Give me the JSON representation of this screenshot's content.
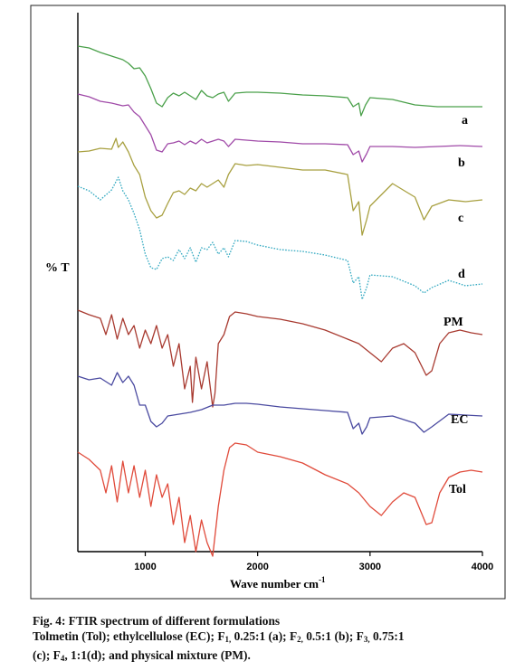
{
  "chart_data": {
    "type": "line",
    "title": "",
    "xlabel": "Wave number cm",
    "xlabel_superscript": "-1",
    "ylabel": "% T",
    "xlim": [
      400,
      4000
    ],
    "x_ticks": [
      1000,
      2000,
      3000,
      4000
    ],
    "y_ticks": [],
    "grid": false,
    "legend": "none (series labelled directly at right)",
    "series": [
      {
        "name": "a",
        "color": "#4aa04a",
        "style": "solid",
        "points": [
          [
            400,
            -3
          ],
          [
            500,
            -5
          ],
          [
            600,
            -10
          ],
          [
            700,
            -14
          ],
          [
            800,
            -18
          ],
          [
            850,
            -22
          ],
          [
            900,
            -28
          ],
          [
            950,
            -27
          ],
          [
            1000,
            -36
          ],
          [
            1050,
            -50
          ],
          [
            1100,
            -66
          ],
          [
            1150,
            -70
          ],
          [
            1200,
            -60
          ],
          [
            1250,
            -55
          ],
          [
            1300,
            -58
          ],
          [
            1350,
            -54
          ],
          [
            1400,
            -58
          ],
          [
            1450,
            -62
          ],
          [
            1500,
            -52
          ],
          [
            1550,
            -58
          ],
          [
            1600,
            -60
          ],
          [
            1650,
            -56
          ],
          [
            1700,
            -54
          ],
          [
            1740,
            -64
          ],
          [
            1800,
            -55
          ],
          [
            1900,
            -54
          ],
          [
            2000,
            -54
          ],
          [
            2200,
            -55
          ],
          [
            2400,
            -57
          ],
          [
            2600,
            -58
          ],
          [
            2800,
            -60
          ],
          [
            2850,
            -70
          ],
          [
            2900,
            -66
          ],
          [
            2920,
            -80
          ],
          [
            2960,
            -68
          ],
          [
            3000,
            -60
          ],
          [
            3200,
            -62
          ],
          [
            3400,
            -68
          ],
          [
            3600,
            -70
          ],
          [
            3800,
            -70
          ],
          [
            4000,
            -70
          ]
        ]
      },
      {
        "name": "b",
        "color": "#a04aa8",
        "style": "solid",
        "points": [
          [
            400,
            0
          ],
          [
            500,
            -3
          ],
          [
            600,
            -8
          ],
          [
            700,
            -10
          ],
          [
            800,
            -13
          ],
          [
            850,
            -12
          ],
          [
            900,
            -20
          ],
          [
            950,
            -25
          ],
          [
            1000,
            -35
          ],
          [
            1050,
            -45
          ],
          [
            1100,
            -62
          ],
          [
            1150,
            -64
          ],
          [
            1200,
            -55
          ],
          [
            1250,
            -54
          ],
          [
            1300,
            -52
          ],
          [
            1350,
            -56
          ],
          [
            1400,
            -52
          ],
          [
            1450,
            -55
          ],
          [
            1500,
            -50
          ],
          [
            1550,
            -54
          ],
          [
            1600,
            -52
          ],
          [
            1650,
            -50
          ],
          [
            1700,
            -52
          ],
          [
            1740,
            -58
          ],
          [
            1800,
            -50
          ],
          [
            1900,
            -51
          ],
          [
            2000,
            -52
          ],
          [
            2200,
            -53
          ],
          [
            2400,
            -55
          ],
          [
            2600,
            -55
          ],
          [
            2800,
            -56
          ],
          [
            2850,
            -67
          ],
          [
            2900,
            -63
          ],
          [
            2930,
            -75
          ],
          [
            2970,
            -66
          ],
          [
            3000,
            -58
          ],
          [
            3200,
            -58
          ],
          [
            3400,
            -59
          ],
          [
            3600,
            -58
          ],
          [
            3800,
            -57
          ],
          [
            4000,
            -58
          ]
        ]
      },
      {
        "name": "c",
        "color": "#a8a040",
        "style": "solid",
        "points": [
          [
            400,
            -5
          ],
          [
            500,
            -4
          ],
          [
            600,
            -1
          ],
          [
            700,
            -2
          ],
          [
            740,
            10
          ],
          [
            760,
            0
          ],
          [
            800,
            6
          ],
          [
            850,
            -5
          ],
          [
            900,
            -20
          ],
          [
            950,
            -30
          ],
          [
            1000,
            -55
          ],
          [
            1050,
            -70
          ],
          [
            1100,
            -78
          ],
          [
            1150,
            -75
          ],
          [
            1200,
            -62
          ],
          [
            1250,
            -50
          ],
          [
            1300,
            -48
          ],
          [
            1350,
            -52
          ],
          [
            1400,
            -45
          ],
          [
            1450,
            -48
          ],
          [
            1500,
            -40
          ],
          [
            1550,
            -44
          ],
          [
            1600,
            -40
          ],
          [
            1650,
            -36
          ],
          [
            1700,
            -44
          ],
          [
            1740,
            -30
          ],
          [
            1800,
            -18
          ],
          [
            1900,
            -20
          ],
          [
            2000,
            -19
          ],
          [
            2200,
            -22
          ],
          [
            2400,
            -25
          ],
          [
            2600,
            -25
          ],
          [
            2800,
            -30
          ],
          [
            2850,
            -70
          ],
          [
            2900,
            -60
          ],
          [
            2930,
            -97
          ],
          [
            2970,
            -80
          ],
          [
            3000,
            -65
          ],
          [
            3200,
            -40
          ],
          [
            3400,
            -55
          ],
          [
            3480,
            -80
          ],
          [
            3550,
            -65
          ],
          [
            3700,
            -58
          ],
          [
            3850,
            -60
          ],
          [
            4000,
            -58
          ]
        ]
      },
      {
        "name": "d",
        "color": "#30a8c0",
        "style": "dotted",
        "points": [
          [
            400,
            0
          ],
          [
            500,
            -5
          ],
          [
            600,
            -15
          ],
          [
            700,
            -4
          ],
          [
            760,
            10
          ],
          [
            800,
            -5
          ],
          [
            850,
            -15
          ],
          [
            900,
            -30
          ],
          [
            950,
            -48
          ],
          [
            1000,
            -75
          ],
          [
            1050,
            -90
          ],
          [
            1100,
            -92
          ],
          [
            1150,
            -80
          ],
          [
            1200,
            -78
          ],
          [
            1250,
            -82
          ],
          [
            1300,
            -70
          ],
          [
            1350,
            -80
          ],
          [
            1400,
            -68
          ],
          [
            1450,
            -84
          ],
          [
            1500,
            -68
          ],
          [
            1550,
            -70
          ],
          [
            1600,
            -62
          ],
          [
            1650,
            -75
          ],
          [
            1700,
            -68
          ],
          [
            1740,
            -78
          ],
          [
            1800,
            -60
          ],
          [
            1900,
            -61
          ],
          [
            2000,
            -65
          ],
          [
            2200,
            -70
          ],
          [
            2400,
            -72
          ],
          [
            2600,
            -76
          ],
          [
            2800,
            -82
          ],
          [
            2850,
            -107
          ],
          [
            2900,
            -100
          ],
          [
            2930,
            -125
          ],
          [
            2970,
            -112
          ],
          [
            3000,
            -98
          ],
          [
            3200,
            -100
          ],
          [
            3400,
            -110
          ],
          [
            3480,
            -118
          ],
          [
            3550,
            -112
          ],
          [
            3700,
            -104
          ],
          [
            3850,
            -110
          ],
          [
            4000,
            -108
          ]
        ]
      },
      {
        "name": "PM",
        "color": "#a83a30",
        "style": "solid",
        "points": [
          [
            400,
            -3
          ],
          [
            500,
            -8
          ],
          [
            600,
            -12
          ],
          [
            650,
            -30
          ],
          [
            700,
            -8
          ],
          [
            750,
            -35
          ],
          [
            800,
            -12
          ],
          [
            850,
            -30
          ],
          [
            900,
            -20
          ],
          [
            950,
            -45
          ],
          [
            1000,
            -25
          ],
          [
            1050,
            -40
          ],
          [
            1100,
            -20
          ],
          [
            1150,
            -45
          ],
          [
            1200,
            -30
          ],
          [
            1250,
            -65
          ],
          [
            1300,
            -40
          ],
          [
            1350,
            -90
          ],
          [
            1400,
            -65
          ],
          [
            1420,
            -105
          ],
          [
            1450,
            -55
          ],
          [
            1500,
            -90
          ],
          [
            1550,
            -60
          ],
          [
            1600,
            -110
          ],
          [
            1620,
            -95
          ],
          [
            1650,
            -40
          ],
          [
            1700,
            -30
          ],
          [
            1750,
            -10
          ],
          [
            1800,
            -5
          ],
          [
            1900,
            -7
          ],
          [
            2000,
            -10
          ],
          [
            2200,
            -13
          ],
          [
            2400,
            -18
          ],
          [
            2600,
            -25
          ],
          [
            2800,
            -35
          ],
          [
            2900,
            -40
          ],
          [
            3000,
            -50
          ],
          [
            3100,
            -60
          ],
          [
            3200,
            -45
          ],
          [
            3300,
            -40
          ],
          [
            3400,
            -50
          ],
          [
            3500,
            -75
          ],
          [
            3550,
            -70
          ],
          [
            3620,
            -40
          ],
          [
            3700,
            -28
          ],
          [
            3800,
            -25
          ],
          [
            3900,
            -28
          ],
          [
            4000,
            -30
          ]
        ]
      },
      {
        "name": "EC",
        "color": "#4a4aa0",
        "style": "solid",
        "points": [
          [
            400,
            -8
          ],
          [
            500,
            -12
          ],
          [
            600,
            -10
          ],
          [
            700,
            -18
          ],
          [
            750,
            -4
          ],
          [
            800,
            -15
          ],
          [
            850,
            -8
          ],
          [
            900,
            -18
          ],
          [
            950,
            -40
          ],
          [
            1000,
            -40
          ],
          [
            1050,
            -58
          ],
          [
            1100,
            -64
          ],
          [
            1150,
            -60
          ],
          [
            1200,
            -52
          ],
          [
            1300,
            -50
          ],
          [
            1400,
            -48
          ],
          [
            1500,
            -45
          ],
          [
            1600,
            -40
          ],
          [
            1700,
            -40
          ],
          [
            1800,
            -38
          ],
          [
            1900,
            -38
          ],
          [
            2000,
            -39
          ],
          [
            2200,
            -42
          ],
          [
            2400,
            -44
          ],
          [
            2600,
            -46
          ],
          [
            2800,
            -48
          ],
          [
            2850,
            -66
          ],
          [
            2900,
            -60
          ],
          [
            2930,
            -72
          ],
          [
            2970,
            -64
          ],
          [
            3000,
            -54
          ],
          [
            3200,
            -52
          ],
          [
            3400,
            -60
          ],
          [
            3480,
            -70
          ],
          [
            3550,
            -64
          ],
          [
            3700,
            -50
          ],
          [
            3850,
            -51
          ],
          [
            4000,
            -52
          ]
        ]
      },
      {
        "name": "Tol",
        "color": "#e04a3a",
        "style": "solid",
        "points": [
          [
            400,
            0
          ],
          [
            500,
            -8
          ],
          [
            600,
            -20
          ],
          [
            650,
            -45
          ],
          [
            700,
            -15
          ],
          [
            750,
            -55
          ],
          [
            800,
            -10
          ],
          [
            850,
            -45
          ],
          [
            900,
            -15
          ],
          [
            950,
            -50
          ],
          [
            1000,
            -20
          ],
          [
            1050,
            -60
          ],
          [
            1100,
            -25
          ],
          [
            1150,
            -50
          ],
          [
            1200,
            -35
          ],
          [
            1250,
            -80
          ],
          [
            1300,
            -50
          ],
          [
            1350,
            -100
          ],
          [
            1400,
            -70
          ],
          [
            1450,
            -110
          ],
          [
            1500,
            -75
          ],
          [
            1550,
            -100
          ],
          [
            1600,
            -115
          ],
          [
            1650,
            -60
          ],
          [
            1700,
            -20
          ],
          [
            1750,
            5
          ],
          [
            1800,
            10
          ],
          [
            1900,
            8
          ],
          [
            2000,
            0
          ],
          [
            2200,
            -5
          ],
          [
            2400,
            -12
          ],
          [
            2600,
            -25
          ],
          [
            2800,
            -35
          ],
          [
            2900,
            -45
          ],
          [
            3000,
            -60
          ],
          [
            3100,
            -70
          ],
          [
            3200,
            -55
          ],
          [
            3300,
            -45
          ],
          [
            3400,
            -50
          ],
          [
            3500,
            -80
          ],
          [
            3550,
            -78
          ],
          [
            3620,
            -45
          ],
          [
            3700,
            -28
          ],
          [
            3800,
            -22
          ],
          [
            3900,
            -20
          ],
          [
            4000,
            -22
          ]
        ]
      }
    ]
  },
  "caption": {
    "line1": "Fig. 4: FTIR spectrum of different formulations",
    "line2_a": "Tolmetin (Tol); ethylcellulose (EC); F",
    "line2_s1": "1,",
    "line2_b": " 0.25:1 (a); F",
    "line2_s2": "2,",
    "line2_c": " 0.5:1 (b); F",
    "line2_s3": "3,",
    "line2_d": " 0.75:1",
    "line3_a": "(c); F",
    "line3_s1": "4",
    "line3_b": ", 1:1(d); and physical mixture (PM)."
  }
}
